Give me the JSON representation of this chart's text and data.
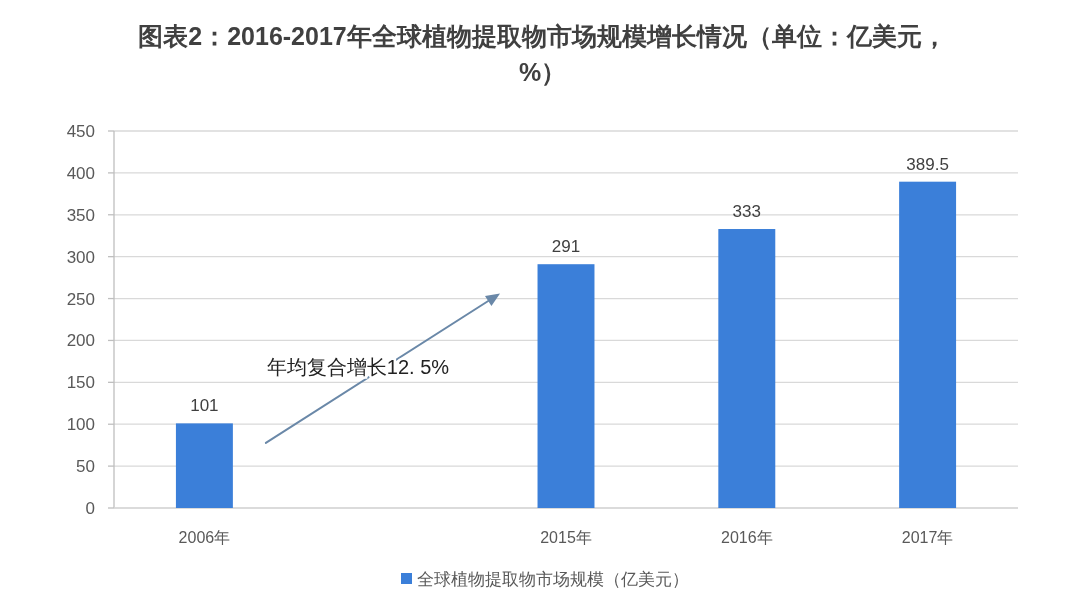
{
  "chart_data": {
    "type": "bar",
    "title": "图表2：2016-2017年全球植物提取物市场规模增长情况（单位：亿美元，%）",
    "categories": [
      "2006年",
      null,
      "2015年",
      "2016年",
      "2017年"
    ],
    "series": [
      {
        "name": "全球植物提取物市场规模（亿美元）",
        "color": "#3b7fd9",
        "values": [
          101,
          null,
          291,
          333,
          389.5
        ]
      }
    ],
    "ylim": [
      0,
      450
    ],
    "yticks": [
      0,
      50,
      100,
      150,
      200,
      250,
      300,
      350,
      400,
      450
    ],
    "grid": "y",
    "legend": "bottom",
    "data_labels": true,
    "annotations": [
      "年均复合增长12. 5%"
    ]
  }
}
